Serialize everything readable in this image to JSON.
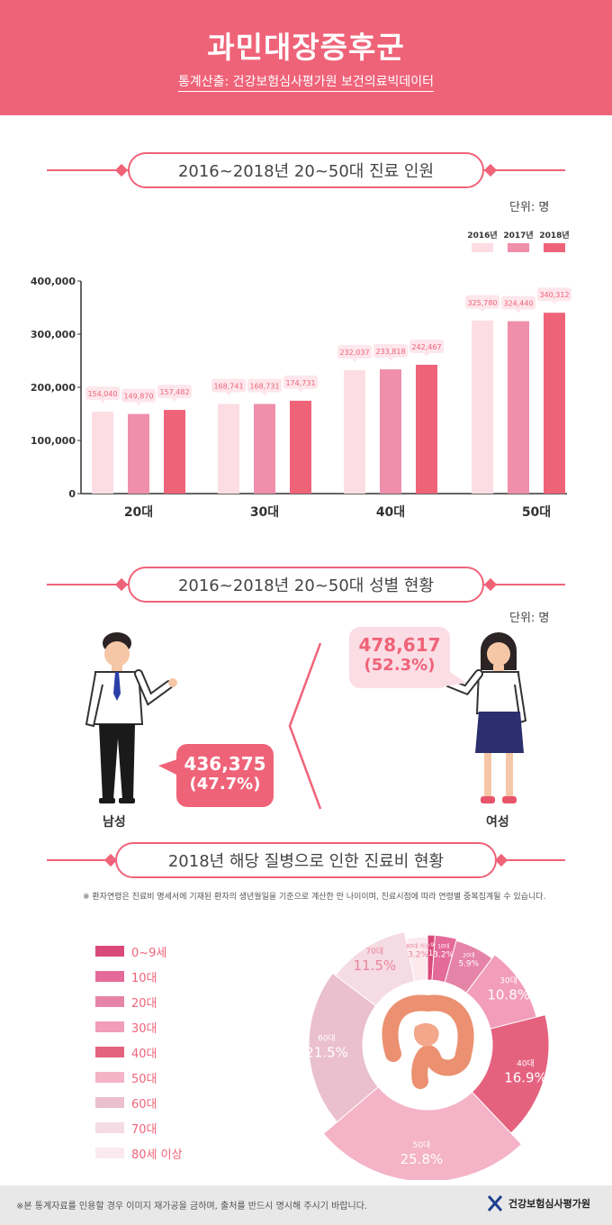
{
  "header": {
    "title": "과민대장증후군",
    "subtitle": "통계산출: 건강보험심사평가원 보건의료빅데이터"
  },
  "section1": {
    "title": "2016~2018년 20~50대 진료 인원",
    "unit": "단위: 명"
  },
  "section2": {
    "title": "2016~2018년 20~50대 성별 현황",
    "unit": "단위: 명",
    "male": {
      "label": "남성",
      "value": "436,375",
      "pct": "(47.7%)"
    },
    "female": {
      "label": "여성",
      "value": "478,617",
      "pct": "(52.3%)"
    }
  },
  "section3": {
    "title": "2018년 해당 질병으로 인한 진료비 현황",
    "note": "※ 환자연령은 진료비 명세서에 기재된 환자의 생년월일을 기준으로 계산한 만 나이이며, 진료시점에 따라 연령별 중복집계될 수 있습니다."
  },
  "footer": {
    "text": "※본 통계자료를 인용할 경우 이미지 재가공을 금하며, 출처를 반드시 명시해 주시기 바랍니다.",
    "org": "건강보험심사평가원"
  },
  "colors": {
    "accent": "#ef6379",
    "y2016": "#fcdde4",
    "y2017": "#ef8fab",
    "y2018": "#ef6379"
  },
  "chart_data": [
    {
      "type": "bar",
      "categories": [
        "20대",
        "30대",
        "40대",
        "50대"
      ],
      "series": [
        {
          "name": "2016년",
          "values": [
            154040,
            168741,
            232037,
            325780
          ],
          "labels": [
            "154,040",
            "168,741",
            "232,037",
            "325,780"
          ]
        },
        {
          "name": "2017년",
          "values": [
            149870,
            168731,
            233818,
            324440
          ],
          "labels": [
            "149,870",
            "168,731",
            "233,818",
            "324,440"
          ]
        },
        {
          "name": "2018년",
          "values": [
            157482,
            174731,
            242467,
            340312
          ],
          "labels": [
            "157,482",
            "174,731",
            "242,467",
            "340,312"
          ]
        }
      ],
      "yticks": [
        "0",
        "100,000",
        "200,000",
        "300,000",
        "400,000"
      ],
      "ylim": [
        0,
        400000
      ],
      "legend": "top-right"
    },
    {
      "type": "pie",
      "slices": [
        {
          "label": "0~9세",
          "name": "0~9세",
          "value": 1.1,
          "pct": "1.1%",
          "color": "#d94a7b"
        },
        {
          "label": "10대",
          "name": "10대",
          "value": 3.2,
          "pct": "3.2%",
          "color": "#e46a9a"
        },
        {
          "label": "20대",
          "name": "20대",
          "value": 5.9,
          "pct": "5.9%",
          "color": "#e684a8"
        },
        {
          "label": "30대",
          "name": "30대",
          "value": 10.8,
          "pct": "10.8%",
          "color": "#f29db9"
        },
        {
          "label": "40대",
          "name": "40대",
          "value": 16.9,
          "pct": "16.9%",
          "color": "#e5627f"
        },
        {
          "label": "50대",
          "name": "50대",
          "value": 25.8,
          "pct": "25.8%",
          "color": "#f4b3c6"
        },
        {
          "label": "60대",
          "name": "60대",
          "value": 21.5,
          "pct": "21.5%",
          "color": "#eabfce"
        },
        {
          "label": "70대",
          "name": "70대",
          "value": 11.5,
          "pct": "11.5%",
          "color": "#f5dbe3"
        },
        {
          "label": "80세 이상",
          "name": "80대 이상",
          "value": 3.2,
          "pct": "3.2%",
          "color": "#fbe9ee"
        }
      ]
    }
  ]
}
